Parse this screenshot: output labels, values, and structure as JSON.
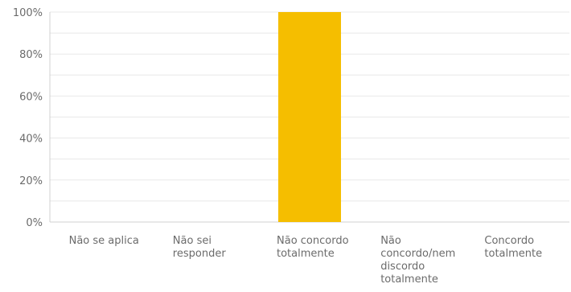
{
  "chart_data": {
    "type": "bar",
    "title": "",
    "xlabel": "",
    "ylabel": "",
    "ylim": [
      0,
      100
    ],
    "y_ticks": [
      "0%",
      "20%",
      "40%",
      "60%",
      "80%",
      "100%"
    ],
    "categories": [
      "Não se aplica",
      "Não sei responder",
      "Não concordo totalmente",
      "Não concordo/nem discordo totalmente",
      "Concordo totalmente"
    ],
    "values": [
      0,
      0,
      100,
      0,
      0
    ],
    "bar_color": "#F5BE00",
    "grid_color": "#E8E8E8",
    "axis_color": "#D0D0D0",
    "text_color": "#6B6B6B",
    "grid": true,
    "minor_grid": true
  }
}
